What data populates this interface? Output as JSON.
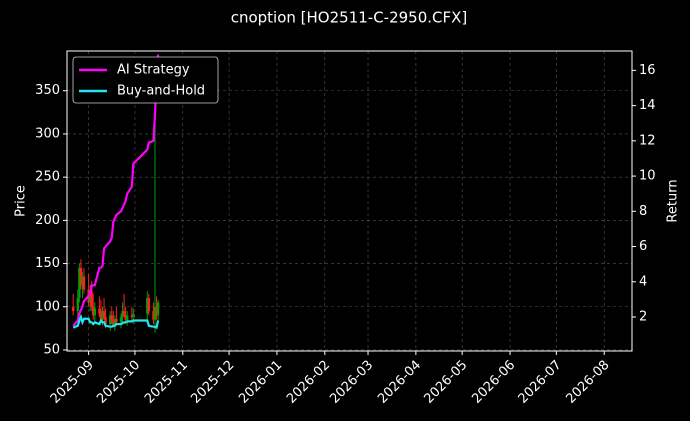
{
  "chart_data": {
    "type": "candlestick",
    "title": "cnoption [HO2511-C-2950.CFX]",
    "ylabel": "Price",
    "y2label": "Return",
    "x": [
      "2025-08-22",
      "2025-08-25",
      "2025-08-26",
      "2025-08-27",
      "2025-08-28",
      "2025-08-29",
      "2025-09-01",
      "2025-09-02",
      "2025-09-03",
      "2025-09-04",
      "2025-09-05",
      "2025-09-08",
      "2025-09-09",
      "2025-09-10",
      "2025-09-11",
      "2025-09-12",
      "2025-09-15",
      "2025-09-16",
      "2025-09-17",
      "2025-09-18",
      "2025-09-19",
      "2025-09-22",
      "2025-09-23",
      "2025-09-24",
      "2025-09-25",
      "2025-09-26",
      "2025-09-29",
      "2025-09-30",
      "2025-10-09",
      "2025-10-10",
      "2025-10-13",
      "2025-10-14",
      "2025-10-15",
      "2025-10-16"
    ],
    "open": [
      100,
      95,
      110,
      145,
      125,
      135,
      120,
      105,
      118,
      100,
      90,
      98,
      92,
      85,
      95,
      88,
      80,
      90,
      85,
      78,
      86,
      82,
      88,
      95,
      90,
      85,
      90,
      88,
      92,
      110,
      95,
      85,
      100,
      90
    ],
    "high": [
      115,
      120,
      150,
      155,
      140,
      145,
      138,
      125,
      130,
      115,
      105,
      112,
      108,
      100,
      110,
      98,
      95,
      100,
      95,
      90,
      100,
      92,
      105,
      115,
      100,
      95,
      100,
      98,
      118,
      115,
      105,
      373,
      112,
      108
    ],
    "low": [
      90,
      88,
      105,
      120,
      110,
      115,
      100,
      95,
      95,
      85,
      80,
      88,
      82,
      78,
      85,
      75,
      72,
      80,
      76,
      72,
      80,
      75,
      82,
      88,
      80,
      78,
      82,
      80,
      85,
      90,
      80,
      70,
      85,
      82
    ],
    "close": [
      95,
      110,
      145,
      125,
      135,
      120,
      105,
      118,
      100,
      90,
      98,
      92,
      85,
      95,
      88,
      80,
      90,
      85,
      78,
      86,
      82,
      88,
      95,
      90,
      85,
      90,
      88,
      92,
      110,
      95,
      85,
      100,
      90,
      105
    ],
    "up_color": "#00a000",
    "down_color": "#ff2020",
    "series": [
      {
        "name": "AI Strategy",
        "color": "#ff00ff",
        "axis": "y2",
        "values": [
          1.5,
          1.8,
          2.2,
          2.4,
          2.6,
          2.9,
          3.2,
          3.3,
          3.8,
          3.8,
          3.8,
          4.8,
          4.8,
          4.9,
          5.9,
          6.0,
          6.3,
          6.5,
          7.4,
          7.6,
          7.8,
          8.0,
          8.2,
          8.4,
          8.6,
          9.0,
          9.4,
          10.7,
          11.5,
          11.9,
          12.0,
          13.5,
          15.5,
          16.9
        ]
      },
      {
        "name": "Buy-and-Hold",
        "color": "#22e5f0",
        "axis": "y2",
        "values": [
          1.4,
          1.5,
          1.8,
          2.0,
          1.7,
          1.9,
          1.9,
          1.7,
          1.7,
          1.6,
          1.7,
          1.6,
          1.8,
          1.7,
          1.7,
          1.5,
          1.45,
          1.45,
          1.5,
          1.5,
          1.6,
          1.6,
          1.65,
          1.7,
          1.7,
          1.75,
          1.75,
          1.8,
          1.8,
          1.5,
          1.45,
          1.45,
          1.4,
          1.8
        ]
      }
    ],
    "xlim": [
      "2025-08-18",
      "2026-08-19"
    ],
    "xticks": [
      "2025-09",
      "2025-10",
      "2025-11",
      "2025-12",
      "2026-01",
      "2026-02",
      "2026-03",
      "2026-04",
      "2026-05",
      "2026-06",
      "2026-07",
      "2026-08"
    ],
    "ylim": [
      48.8,
      396
    ],
    "yticks": [
      50,
      100,
      150,
      200,
      250,
      300,
      350
    ],
    "y2lim": [
      0.07,
      17.1
    ],
    "y2ticks": [
      2,
      4,
      6,
      8,
      10,
      12,
      14,
      16
    ],
    "grid": true,
    "legend": "upper left"
  }
}
